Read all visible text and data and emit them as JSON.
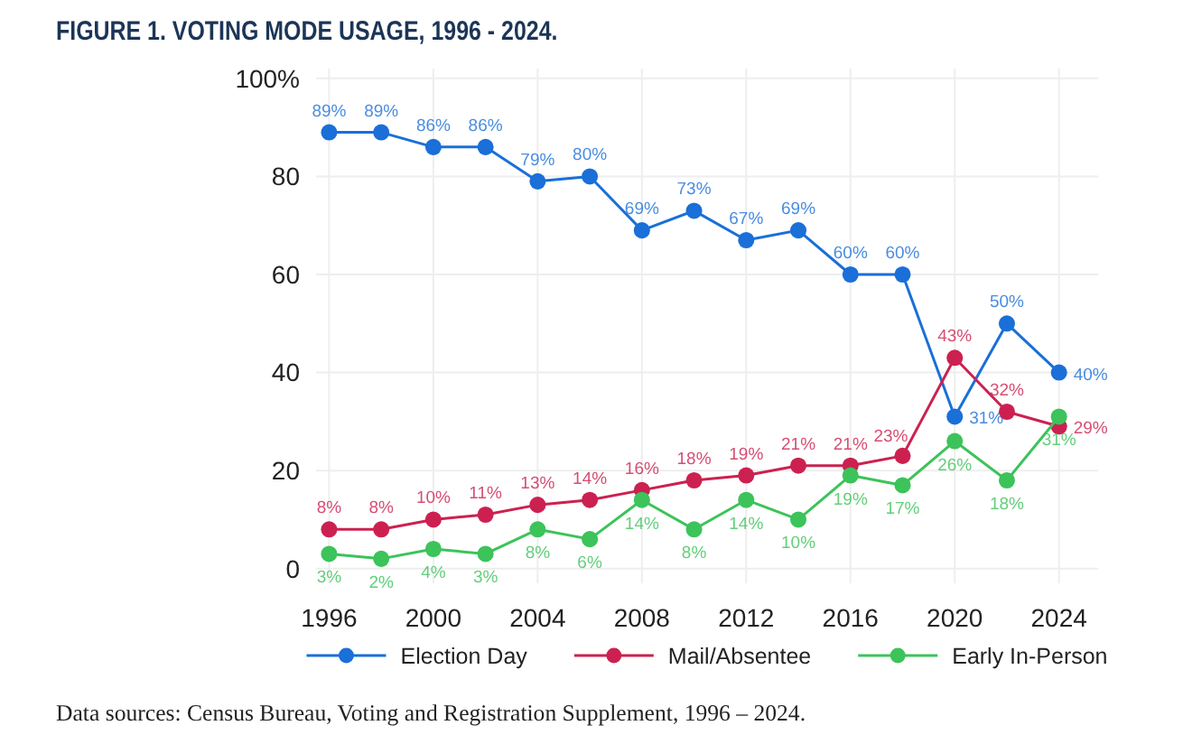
{
  "chart_data": {
    "type": "line",
    "title": "FIGURE 1. VOTING MODE USAGE, 1996 - 2024.",
    "x": [
      1996,
      1998,
      2000,
      2002,
      2004,
      2006,
      2008,
      2010,
      2012,
      2014,
      2016,
      2018,
      2020,
      2022,
      2024
    ],
    "series": [
      {
        "name": "Election Day",
        "color": "#1a6fd8",
        "values": [
          89,
          89,
          86,
          86,
          79,
          80,
          69,
          73,
          67,
          69,
          60,
          60,
          31,
          50,
          40
        ],
        "value_labels": [
          "89%",
          "89%",
          "86%",
          "86%",
          "79%",
          "80%",
          "69%",
          "73%",
          "67%",
          "69%",
          "60%",
          "60%",
          "31%",
          "50%",
          "40%"
        ]
      },
      {
        "name": "Mail/Absentee",
        "color": "#cc2150",
        "values": [
          8,
          8,
          10,
          11,
          13,
          14,
          16,
          18,
          19,
          21,
          21,
          23,
          43,
          32,
          29
        ],
        "value_labels": [
          "8%",
          "8%",
          "10%",
          "11%",
          "13%",
          "14%",
          "16%",
          "18%",
          "19%",
          "21%",
          "21%",
          "23%",
          "43%",
          "32%",
          "29%"
        ]
      },
      {
        "name": "Early In-Person",
        "color": "#3cc35a",
        "values": [
          3,
          2,
          4,
          3,
          8,
          6,
          14,
          8,
          14,
          10,
          19,
          17,
          26,
          18,
          31
        ],
        "value_labels": [
          "3%",
          "2%",
          "4%",
          "3%",
          "8%",
          "6%",
          "14%",
          "8%",
          "14%",
          "10%",
          "19%",
          "17%",
          "26%",
          "18%",
          "31%"
        ]
      }
    ],
    "xlim": [
      1995.5,
      2025.5
    ],
    "xticks": [
      1996,
      2000,
      2004,
      2008,
      2012,
      2016,
      2020,
      2024
    ],
    "ylim": [
      -3,
      102
    ],
    "yticks": [
      0,
      20,
      40,
      60,
      80,
      {
        "value": 100,
        "label": "100%"
      }
    ],
    "grid": true,
    "legend": "bottom",
    "marker": "circle",
    "annotations": [
      "Data sources: Census Bureau, Voting and Registration Supplement, 1996 – 2024."
    ]
  }
}
